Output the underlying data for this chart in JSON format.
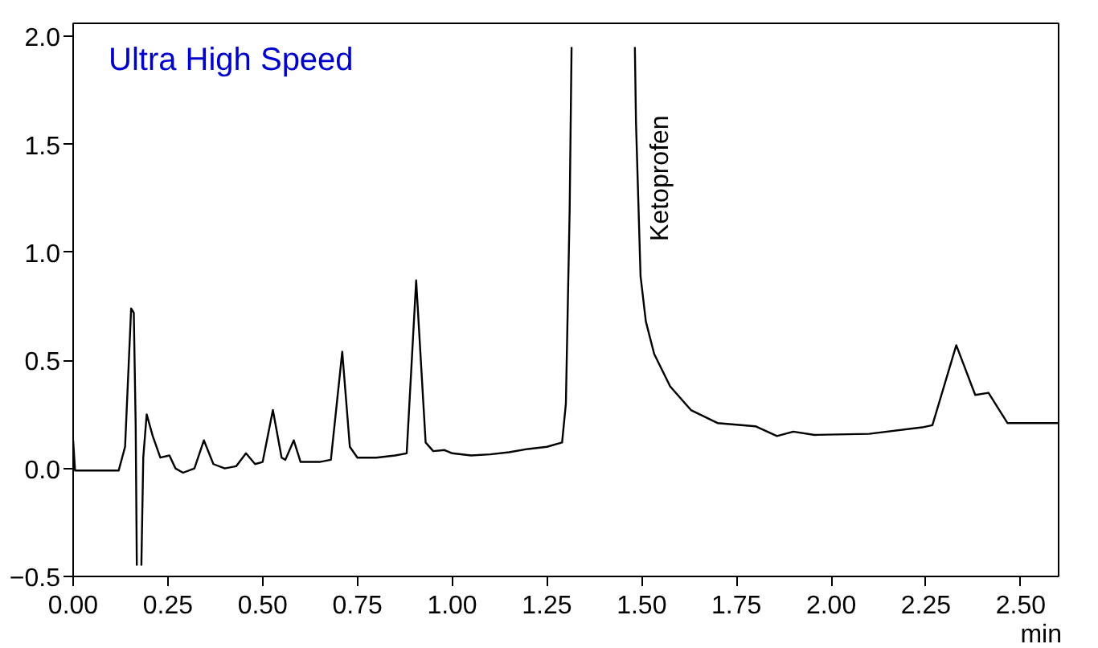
{
  "chart_data": {
    "type": "line",
    "title": "Ultra High Speed",
    "xlabel": "min",
    "annotations": [
      "Ketoprofen"
    ],
    "x": [
      0.0,
      0.005,
      0.05,
      0.1,
      0.12,
      0.137,
      0.153,
      0.16,
      0.165,
      0.168,
      0.17,
      0.175,
      0.18,
      0.185,
      0.194,
      0.21,
      0.23,
      0.254,
      0.27,
      0.29,
      0.32,
      0.345,
      0.37,
      0.4,
      0.43,
      0.456,
      0.48,
      0.5,
      0.527,
      0.55,
      0.56,
      0.582,
      0.6,
      0.65,
      0.68,
      0.71,
      0.73,
      0.75,
      0.8,
      0.85,
      0.88,
      0.905,
      0.93,
      0.95,
      0.98,
      1.0,
      1.05,
      1.1,
      1.15,
      1.2,
      1.25,
      1.29,
      1.3,
      1.31,
      1.315,
      1.32,
      1.48,
      1.482,
      1.485,
      1.497,
      1.511,
      1.533,
      1.575,
      1.63,
      1.7,
      1.8,
      1.857,
      1.9,
      1.956,
      2.1,
      2.24,
      2.267,
      2.33,
      2.38,
      2.415,
      2.465,
      2.6
    ],
    "series": [
      {
        "color": "#000000",
        "values": [
          0.13,
          -0.01,
          -0.01,
          -0.01,
          -0.01,
          0.1,
          0.74,
          0.72,
          0.2,
          -0.45,
          null,
          null,
          -0.45,
          0.05,
          0.25,
          0.15,
          0.05,
          0.06,
          0.0,
          -0.02,
          0.0,
          0.13,
          0.02,
          0.0,
          0.01,
          0.07,
          0.02,
          0.03,
          0.27,
          0.05,
          0.04,
          0.13,
          0.03,
          0.03,
          0.04,
          0.54,
          0.1,
          0.05,
          0.05,
          0.06,
          0.07,
          0.87,
          0.12,
          0.08,
          0.085,
          0.07,
          0.06,
          0.065,
          0.075,
          0.09,
          0.1,
          0.12,
          0.3,
          1.2,
          1.95,
          null,
          null,
          1.95,
          1.6,
          0.89,
          0.68,
          0.53,
          0.38,
          0.27,
          0.21,
          0.195,
          0.15,
          0.17,
          0.155,
          0.16,
          0.19,
          0.2,
          0.57,
          0.34,
          0.35,
          0.21,
          0.21
        ]
      }
    ],
    "xlim": [
      0,
      2.6
    ],
    "ylim": [
      -0.5,
      2.06
    ],
    "xticks": [
      {
        "value": 0,
        "label": "0.00"
      },
      0.25,
      {
        "value": 0.5,
        "label": "0.50"
      },
      0.75,
      {
        "value": 1,
        "label": "1.00"
      },
      1.25,
      {
        "value": 1.5,
        "label": "1.50"
      },
      1.75,
      {
        "value": 2,
        "label": "2.00"
      },
      2.25,
      {
        "value": 2.5,
        "label": "2.50"
      }
    ],
    "yticks": [
      -0.5,
      {
        "value": 0,
        "label": "0.0"
      },
      0.5,
      {
        "value": 1,
        "label": "1.0"
      },
      1.5,
      {
        "value": 2,
        "label": "2.0"
      }
    ],
    "grid": false
  }
}
